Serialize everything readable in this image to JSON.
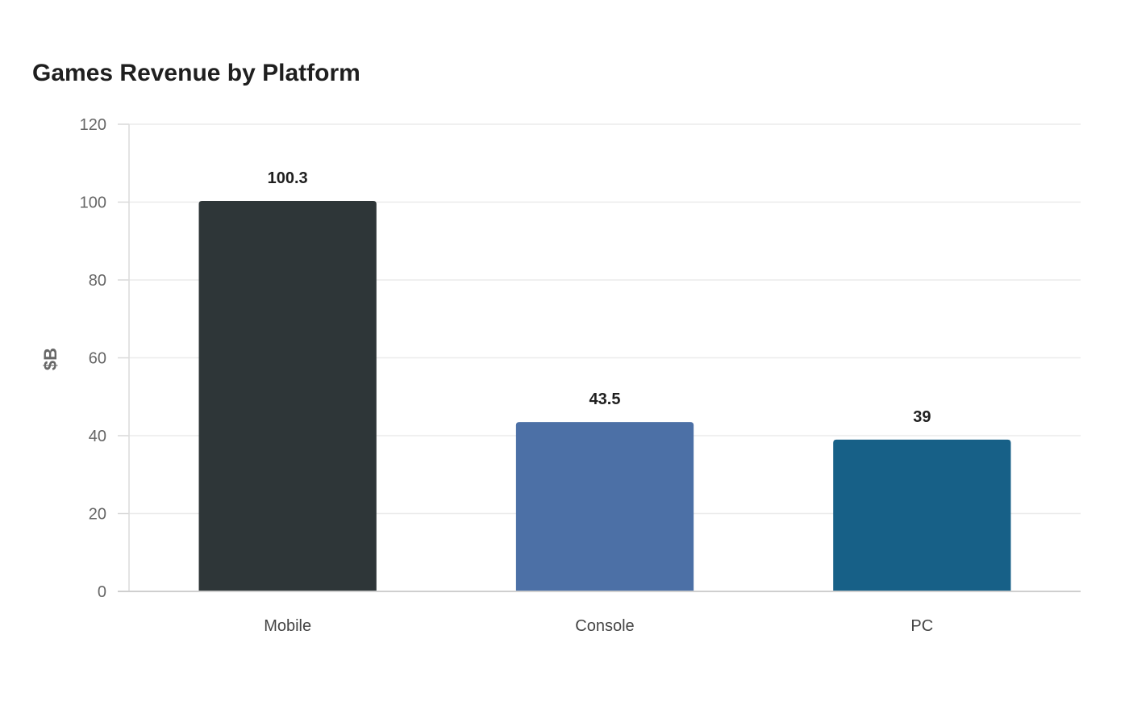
{
  "chart_data": {
    "type": "bar",
    "title": "Games Revenue by Platform",
    "xlabel": "",
    "ylabel": "$B",
    "categories": [
      "Mobile",
      "Console",
      "PC"
    ],
    "values": [
      100.3,
      43.5,
      39
    ],
    "value_labels": [
      "100.3",
      "43.5",
      "39"
    ],
    "colors": [
      "#2e3638",
      "#4c70a6",
      "#176087"
    ],
    "ylim": [
      0,
      120
    ],
    "yticks": [
      0,
      20,
      40,
      60,
      80,
      100,
      120
    ],
    "grid": true,
    "legend": "none"
  }
}
